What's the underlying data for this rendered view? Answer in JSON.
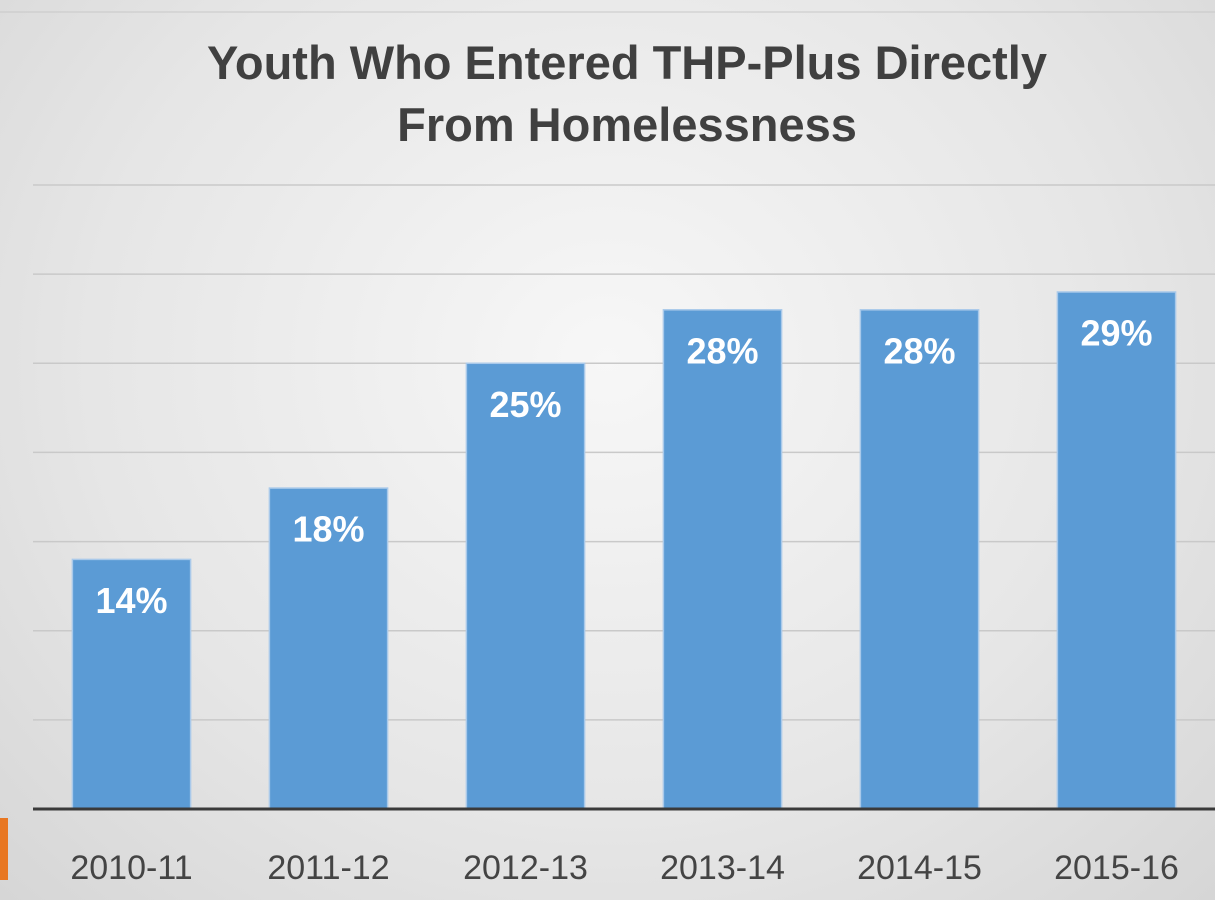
{
  "chart_data": {
    "type": "bar",
    "title": "Youth Who Entered THP-Plus Directly From Homelessness",
    "categories": [
      "2010-11",
      "2011-12",
      "2012-13",
      "2013-14",
      "2014-15",
      "2015-16"
    ],
    "values": [
      14,
      18,
      25,
      28,
      28,
      29
    ],
    "value_labels": [
      "14%",
      "18%",
      "25%",
      "28%",
      "28%",
      "29%"
    ],
    "color": "#5b9bd5",
    "ylim": [
      0,
      35
    ],
    "yticks": [
      0,
      5,
      10,
      15,
      20,
      25,
      30,
      35
    ],
    "grid": true
  }
}
